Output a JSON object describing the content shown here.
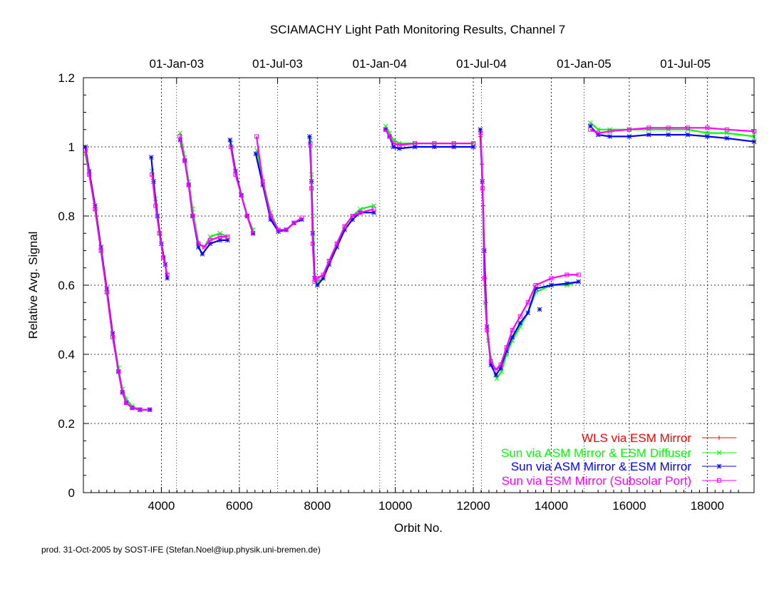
{
  "chart_data": {
    "type": "scatter",
    "title": "SCIAMACHY Light Path Monitoring Results, Channel 7",
    "xlabel": "Orbit No.",
    "ylabel": "Relative Avg. Signal",
    "xlim": [
      2000,
      19200
    ],
    "ylim": [
      0,
      1.2
    ],
    "x_ticks": [
      4000,
      6000,
      8000,
      10000,
      12000,
      14000,
      16000,
      18000
    ],
    "y_ticks": [
      0,
      0.2,
      0.4,
      0.6,
      0.8,
      1,
      1.2
    ],
    "y_tick_labels": [
      "0",
      "0.2",
      "0.4",
      "0.6",
      "0.8",
      "1",
      "1.2"
    ],
    "top_axis": {
      "labels": [
        "01-Jan-03",
        "01-Jul-03",
        "01-Jan-04",
        "01-Jul-04",
        "01-Jan-05",
        "01-Jul-05"
      ],
      "orbits": [
        4390,
        6980,
        9600,
        12210,
        14840,
        17440
      ]
    },
    "grid": true,
    "legend_position": "bottom-right",
    "series": [
      {
        "name": "WLS via ESM Mirror",
        "color": "#ff0000",
        "marker": "+",
        "points": [
          [
            12180,
            1.03
          ],
          [
            12220,
            0.95
          ],
          [
            12250,
            0.83
          ],
          [
            12290,
            0.62
          ],
          [
            12320,
            0.55
          ]
        ]
      },
      {
        "name": "Sun via ASM Mirror & ESM Diffuser",
        "color": "#00ff00",
        "marker": "x",
        "segments": [
          [
            [
              2050,
              0.98
            ],
            [
              2150,
              0.92
            ],
            [
              2300,
              0.82
            ],
            [
              2450,
              0.7
            ],
            [
              2600,
              0.58
            ],
            [
              2750,
              0.46
            ],
            [
              2900,
              0.36
            ],
            [
              3000,
              0.3
            ],
            [
              3100,
              0.27
            ],
            [
              3250,
              0.25
            ],
            [
              3450,
              0.24
            ],
            [
              3700,
              0.24
            ]
          ],
          [
            [
              3760,
              0.93
            ],
            [
              3850,
              0.85
            ],
            [
              3950,
              0.75
            ],
            [
              4050,
              0.68
            ],
            [
              4150,
              0.63
            ]
          ],
          [
            [
              4480,
              1.04
            ],
            [
              4600,
              0.97
            ],
            [
              4700,
              0.9
            ],
            [
              4800,
              0.82
            ],
            [
              4950,
              0.72
            ],
            [
              5100,
              0.71
            ],
            [
              5250,
              0.74
            ],
            [
              5500,
              0.75
            ],
            [
              5700,
              0.74
            ]
          ],
          [
            [
              5780,
              1.01
            ],
            [
              5900,
              0.93
            ],
            [
              6050,
              0.86
            ],
            [
              6200,
              0.8
            ],
            [
              6350,
              0.76
            ]
          ],
          [
            [
              6450,
              0.99
            ],
            [
              6600,
              0.9
            ],
            [
              6800,
              0.81
            ],
            [
              7000,
              0.76
            ],
            [
              7200,
              0.76
            ],
            [
              7400,
              0.78
            ],
            [
              7600,
              0.79
            ]
          ],
          [
            [
              7820,
              1.02
            ],
            [
              7850,
              0.92
            ],
            [
              7880,
              0.8
            ],
            [
              7930,
              0.63
            ],
            [
              8000,
              0.61
            ],
            [
              8150,
              0.62
            ],
            [
              8300,
              0.67
            ],
            [
              8500,
              0.72
            ],
            [
              8700,
              0.77
            ],
            [
              8900,
              0.8
            ],
            [
              9100,
              0.82
            ],
            [
              9450,
              0.83
            ]
          ],
          [
            [
              9750,
              1.06
            ],
            [
              9850,
              1.04
            ],
            [
              9950,
              1.02
            ],
            [
              10100,
              1.01
            ],
            [
              10500,
              1.01
            ],
            [
              11000,
              1.01
            ],
            [
              11500,
              1.01
            ],
            [
              12000,
              1.01
            ]
          ],
          [
            [
              12300,
              0.55
            ],
            [
              12380,
              0.44
            ],
            [
              12480,
              0.37
            ],
            [
              12600,
              0.33
            ],
            [
              12720,
              0.35
            ],
            [
              12850,
              0.4
            ],
            [
              13000,
              0.44
            ],
            [
              13200,
              0.48
            ],
            [
              13400,
              0.52
            ],
            [
              13600,
              0.58
            ],
            [
              14000,
              0.6
            ],
            [
              14400,
              0.6
            ],
            [
              14700,
              0.61
            ]
          ],
          [
            [
              15000,
              1.07
            ],
            [
              15200,
              1.05
            ],
            [
              15500,
              1.05
            ],
            [
              16000,
              1.05
            ],
            [
              16500,
              1.05
            ],
            [
              17000,
              1.05
            ],
            [
              17500,
              1.05
            ],
            [
              18000,
              1.04
            ],
            [
              18500,
              1.04
            ],
            [
              19200,
              1.03
            ]
          ]
        ]
      },
      {
        "name": "Sun via ASM Mirror & ESM Mirror",
        "color": "#0000ff",
        "marker": "*",
        "segments": [
          [
            [
              2050,
              1.0
            ],
            [
              2150,
              0.93
            ],
            [
              2300,
              0.83
            ],
            [
              2450,
              0.71
            ],
            [
              2600,
              0.59
            ],
            [
              2750,
              0.46
            ],
            [
              2900,
              0.35
            ],
            [
              3000,
              0.29
            ],
            [
              3100,
              0.26
            ],
            [
              3250,
              0.245
            ],
            [
              3450,
              0.24
            ],
            [
              3700,
              0.24
            ]
          ],
          [
            [
              3740,
              0.97
            ],
            [
              3800,
              0.9
            ],
            [
              3900,
              0.8
            ],
            [
              4000,
              0.72
            ],
            [
              4100,
              0.66
            ],
            [
              4150,
              0.62
            ]
          ],
          [
            [
              4480,
              1.02
            ],
            [
              4600,
              0.96
            ],
            [
              4700,
              0.89
            ],
            [
              4800,
              0.8
            ],
            [
              4950,
              0.71
            ],
            [
              5050,
              0.69
            ],
            [
              5250,
              0.72
            ],
            [
              5500,
              0.73
            ],
            [
              5700,
              0.73
            ]
          ],
          [
            [
              5760,
              1.02
            ],
            [
              5900,
              0.93
            ],
            [
              6050,
              0.86
            ],
            [
              6200,
              0.8
            ],
            [
              6350,
              0.75
            ]
          ],
          [
            [
              6420,
              0.98
            ],
            [
              6600,
              0.89
            ],
            [
              6800,
              0.79
            ],
            [
              7000,
              0.755
            ],
            [
              7200,
              0.76
            ],
            [
              7400,
              0.78
            ],
            [
              7600,
              0.79
            ]
          ],
          [
            [
              7800,
              1.03
            ],
            [
              7850,
              0.9
            ],
            [
              7880,
              0.75
            ],
            [
              7930,
              0.62
            ],
            [
              8000,
              0.6
            ],
            [
              8150,
              0.62
            ],
            [
              8300,
              0.66
            ],
            [
              8500,
              0.71
            ],
            [
              8700,
              0.76
            ],
            [
              8900,
              0.79
            ],
            [
              9100,
              0.81
            ],
            [
              9450,
              0.81
            ]
          ],
          [
            [
              9750,
              1.05
            ],
            [
              9850,
              1.03
            ],
            [
              9950,
              1.0
            ],
            [
              10100,
              0.995
            ],
            [
              10500,
              1.0
            ],
            [
              11000,
              1.0
            ],
            [
              11500,
              1.0
            ],
            [
              12000,
              1.0
            ]
          ],
          [
            [
              12180,
              1.05
            ],
            [
              12230,
              0.9
            ],
            [
              12280,
              0.7
            ],
            [
              12350,
              0.48
            ],
            [
              12450,
              0.37
            ],
            [
              12580,
              0.34
            ],
            [
              12700,
              0.36
            ],
            [
              12850,
              0.41
            ],
            [
              13000,
              0.45
            ],
            [
              13200,
              0.49
            ],
            [
              13400,
              0.52
            ],
            [
              13600,
              0.59
            ],
            [
              14000,
              0.6
            ],
            [
              14400,
              0.605
            ],
            [
              14700,
              0.61
            ]
          ],
          [
            [
              13700,
              0.53
            ]
          ],
          [
            [
              15000,
              1.06
            ],
            [
              15200,
              1.035
            ],
            [
              15500,
              1.03
            ],
            [
              16000,
              1.03
            ],
            [
              16500,
              1.035
            ],
            [
              17000,
              1.035
            ],
            [
              17500,
              1.035
            ],
            [
              18000,
              1.03
            ],
            [
              18500,
              1.025
            ],
            [
              19200,
              1.015
            ]
          ]
        ]
      },
      {
        "name": "Sun via ESM Mirror (Subsolar Port)",
        "color": "#ff00ff",
        "marker": "square",
        "segments": [
          [
            [
              2050,
              0.99
            ],
            [
              2150,
              0.92
            ],
            [
              2300,
              0.82
            ],
            [
              2450,
              0.7
            ],
            [
              2600,
              0.58
            ],
            [
              2750,
              0.45
            ],
            [
              2900,
              0.35
            ],
            [
              3000,
              0.29
            ],
            [
              3100,
              0.26
            ],
            [
              3250,
              0.245
            ],
            [
              3450,
              0.24
            ],
            [
              3700,
              0.24
            ]
          ],
          [
            [
              3760,
              0.92
            ],
            [
              3850,
              0.83
            ],
            [
              3950,
              0.75
            ],
            [
              4050,
              0.68
            ],
            [
              4150,
              0.63
            ]
          ],
          [
            [
              4470,
              1.03
            ],
            [
              4600,
              0.96
            ],
            [
              4700,
              0.89
            ],
            [
              4800,
              0.8
            ],
            [
              4950,
              0.72
            ],
            [
              5100,
              0.71
            ],
            [
              5250,
              0.73
            ],
            [
              5500,
              0.74
            ],
            [
              5700,
              0.74
            ]
          ],
          [
            [
              5780,
              1.0
            ],
            [
              5900,
              0.92
            ],
            [
              6050,
              0.86
            ],
            [
              6200,
              0.8
            ],
            [
              6350,
              0.75
            ]
          ],
          [
            [
              6440,
              1.03
            ],
            [
              6600,
              0.9
            ],
            [
              6800,
              0.8
            ],
            [
              7000,
              0.76
            ],
            [
              7200,
              0.76
            ],
            [
              7400,
              0.78
            ],
            [
              7600,
              0.795
            ]
          ],
          [
            [
              7820,
              1.01
            ],
            [
              7850,
              0.88
            ],
            [
              7880,
              0.72
            ],
            [
              7930,
              0.61
            ],
            [
              8000,
              0.62
            ],
            [
              8150,
              0.63
            ],
            [
              8300,
              0.67
            ],
            [
              8500,
              0.72
            ],
            [
              8700,
              0.77
            ],
            [
              8900,
              0.8
            ],
            [
              9100,
              0.81
            ],
            [
              9450,
              0.82
            ]
          ],
          [
            [
              9750,
              1.05
            ],
            [
              9850,
              1.03
            ],
            [
              9950,
              1.01
            ],
            [
              10100,
              1.005
            ],
            [
              10500,
              1.01
            ],
            [
              11000,
              1.01
            ],
            [
              11500,
              1.01
            ],
            [
              12000,
              1.01
            ]
          ],
          [
            [
              12190,
              1.04
            ],
            [
              12240,
              0.88
            ],
            [
              12280,
              0.62
            ],
            [
              12350,
              0.47
            ],
            [
              12450,
              0.38
            ],
            [
              12580,
              0.355
            ],
            [
              12700,
              0.37
            ],
            [
              12850,
              0.42
            ],
            [
              13000,
              0.47
            ],
            [
              13200,
              0.51
            ],
            [
              13400,
              0.55
            ],
            [
              13600,
              0.6
            ],
            [
              14000,
              0.62
            ],
            [
              14400,
              0.63
            ],
            [
              14700,
              0.63
            ]
          ],
          [
            [
              15000,
              1.05
            ],
            [
              15200,
              1.04
            ],
            [
              15500,
              1.045
            ],
            [
              16000,
              1.05
            ],
            [
              16500,
              1.055
            ],
            [
              17000,
              1.055
            ],
            [
              17500,
              1.055
            ],
            [
              18000,
              1.055
            ],
            [
              18500,
              1.05
            ],
            [
              19200,
              1.045
            ]
          ]
        ]
      }
    ]
  },
  "footer": "prod. 31-Oct-2005 by SOST-IFE (Stefan.Noel@iup.physik.uni-bremen.de)"
}
